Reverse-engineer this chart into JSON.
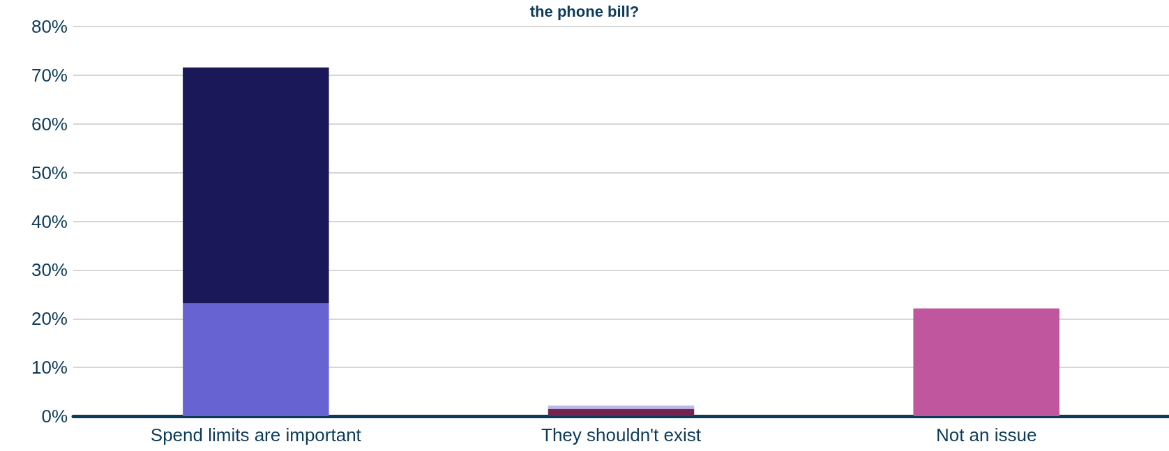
{
  "chart_data": {
    "type": "bar",
    "title": "the phone bill?",
    "categories": [
      "Spend limits are important",
      "They shouldn't exist",
      "Not an issue"
    ],
    "stacked": true,
    "series": [
      {
        "colors": [
          "#6763d3",
          "#73234f",
          "#c0569e"
        ],
        "values": [
          23.2,
          1.5,
          22.1
        ]
      },
      {
        "colors": [
          "#1a1858",
          "#bcb9ea",
          null
        ],
        "values": [
          48.4,
          0.7,
          null
        ]
      }
    ],
    "ylim": [
      0,
      80
    ],
    "yticks": [
      {
        "value": 0,
        "label": "0%"
      },
      {
        "value": 10,
        "label": "10%"
      },
      {
        "value": 20,
        "label": "20%"
      },
      {
        "value": 30,
        "label": "30%"
      },
      {
        "value": 40,
        "label": "40%"
      },
      {
        "value": 50,
        "label": "50%"
      },
      {
        "value": 60,
        "label": "60%"
      },
      {
        "value": 70,
        "label": "70%"
      },
      {
        "value": 80,
        "label": "80%"
      }
    ],
    "grid": "y"
  }
}
